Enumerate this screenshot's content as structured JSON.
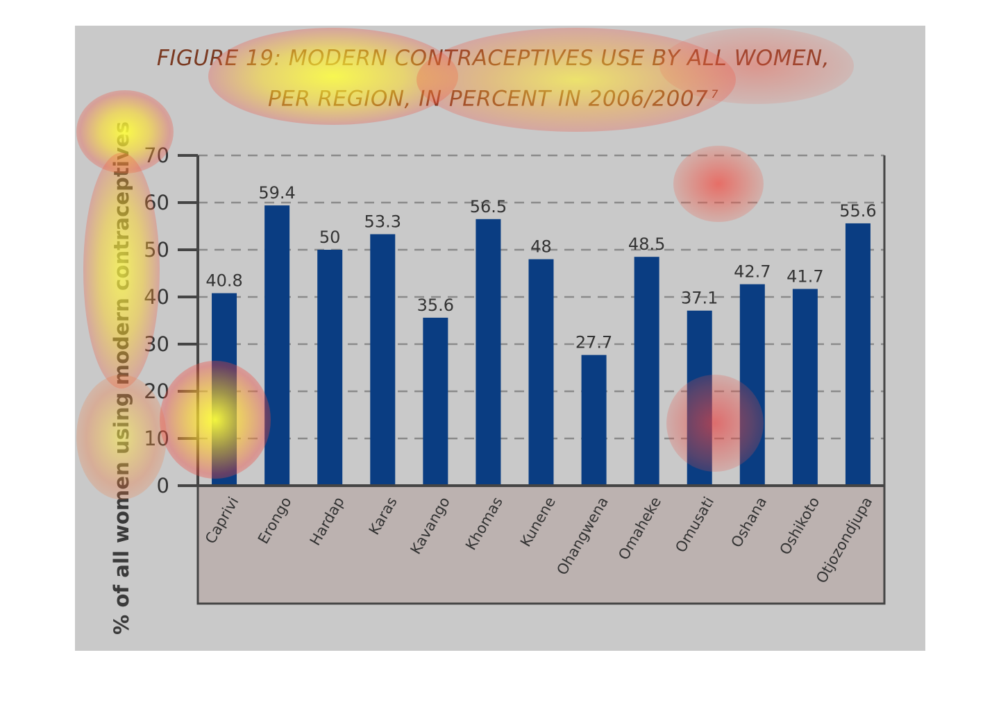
{
  "chart_data": {
    "type": "bar",
    "title_line1": "FIGURE 19: MODERN CONTRACEPTIVES USE BY ALL WOMEN,",
    "title_line2": "PER REGION, IN PERCENT IN 2006/2007",
    "title_footnote": "7",
    "ylabel": "% of all women using modern contraceptives",
    "xlabel": "",
    "ylim": [
      0,
      70
    ],
    "yticks": [
      0,
      10,
      20,
      30,
      40,
      50,
      60,
      70
    ],
    "grid": "dashed-horizontal",
    "categories": [
      "Caprivi",
      "Erongo",
      "Hardap",
      "Karas",
      "Kavango",
      "Khomas",
      "Kunene",
      "Ohangwena",
      "Omaheke",
      "Omusati",
      "Oshana",
      "Oshikoto",
      "Otjozondjupa"
    ],
    "values": [
      40.8,
      59.4,
      50,
      53.3,
      35.6,
      56.5,
      48,
      27.7,
      48.5,
      37.1,
      42.7,
      41.7,
      55.6
    ],
    "value_labels": [
      "40.8",
      "59.4",
      "50",
      "53.3",
      "35.6",
      "56.5",
      "48",
      "27.7",
      "48.5",
      "37.1",
      "42.7",
      "41.7",
      "55.6"
    ],
    "colors": {
      "bar": "#0a3d82",
      "panel": "#c9c9c9",
      "category_band": "#bcb2b0",
      "grid": "#8a8a8a",
      "axis": "#444444",
      "title": "#7a3a22",
      "tick_text": "#333333"
    }
  }
}
